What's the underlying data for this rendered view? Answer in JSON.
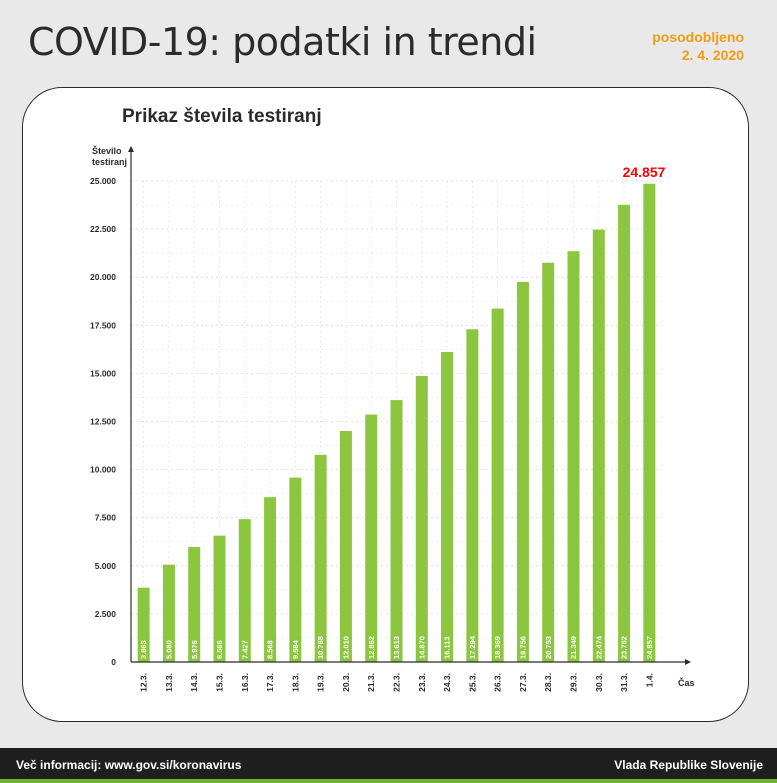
{
  "header": {
    "title": "COVID-19: podatki in trendi",
    "updated_label": "posodobljeno",
    "updated_date": "2. 4. 2020"
  },
  "footer": {
    "info": "Več informacij: www.gov.si/koronavirus",
    "publisher": "Vlada Republike Slovenije"
  },
  "colors": {
    "bar": "#8cc63f",
    "highlight": "#ff0000",
    "accent": "#f39c12"
  },
  "chart_data": {
    "type": "bar",
    "title": "Prikaz števila testiranj",
    "ylabel_line1": "Število",
    "ylabel_line2": "testiranj",
    "xlabel": "Čas",
    "ylim": [
      0,
      25000
    ],
    "yticks": [
      0,
      2500,
      5000,
      7500,
      10000,
      12500,
      15000,
      17500,
      20000,
      22500,
      25000
    ],
    "ytick_labels": [
      "0",
      "2.500",
      "5.000",
      "7.500",
      "10.000",
      "12.500",
      "15.000",
      "17.500",
      "20.000",
      "22.500",
      "25.000"
    ],
    "grid": true,
    "categories": [
      "12.3.",
      "13.3.",
      "14.3.",
      "15.3.",
      "16.3.",
      "17.3.",
      "18.3.",
      "19.3.",
      "20.3.",
      "21.3.",
      "22.3.",
      "23.3.",
      "24.3.",
      "25.3.",
      "26.3.",
      "27.3.",
      "28.3.",
      "29.3.",
      "30.3.",
      "31.3.",
      "1.4."
    ],
    "values": [
      3863,
      5060,
      5976,
      6566,
      7427,
      8568,
      9584,
      10768,
      12010,
      12862,
      13613,
      14870,
      16113,
      17294,
      18369,
      19756,
      20753,
      21349,
      22474,
      23762,
      24857
    ],
    "value_labels": [
      "3.863",
      "5.060",
      "5.976",
      "6.566",
      "7.427",
      "8.568",
      "9.584",
      "10.768",
      "12.010",
      "12.862",
      "13.613",
      "14.870",
      "16.113",
      "17.294",
      "18.369",
      "19.756",
      "20.753",
      "21.349",
      "22.474",
      "23.762",
      "24.857"
    ],
    "highlight_label": "24.857"
  }
}
